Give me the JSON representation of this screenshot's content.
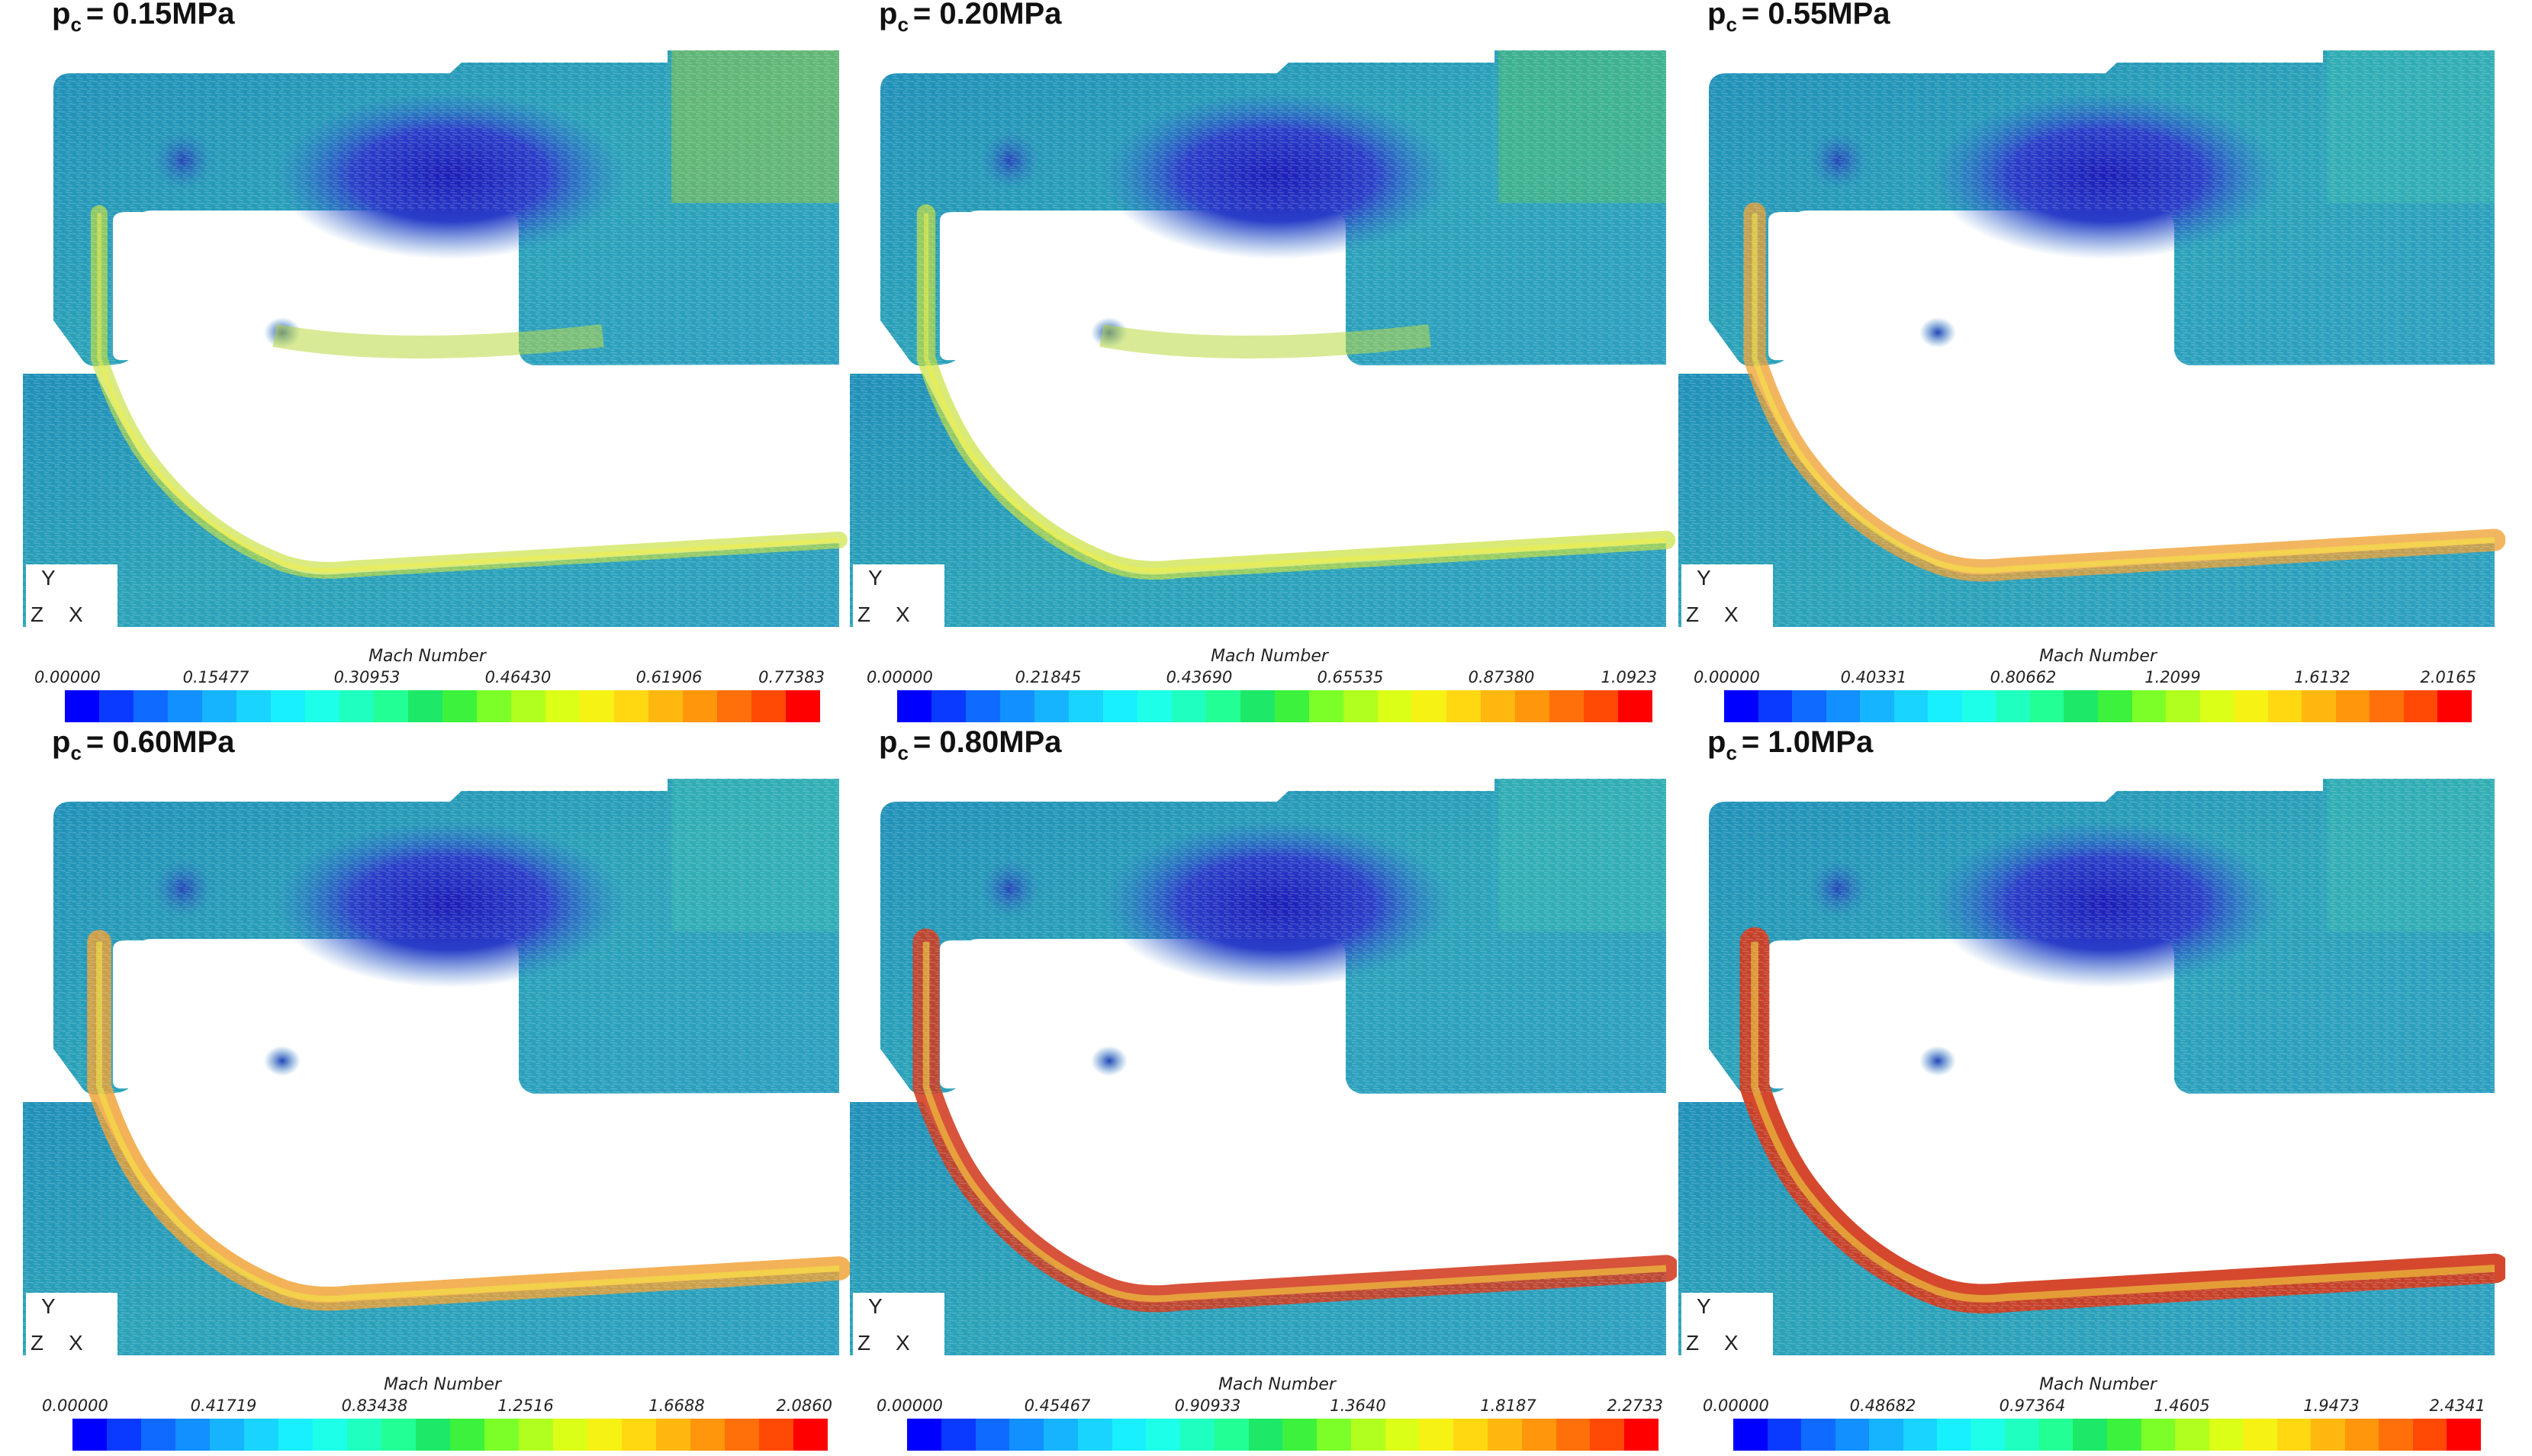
{
  "colorbar_title": "Mach Number",
  "axis_labels": {
    "y": "Y",
    "z": "Z",
    "x": "X"
  },
  "colormap": [
    "#0000ff",
    "#0a3aff",
    "#0f6bff",
    "#1290ff",
    "#16b4ff",
    "#18d4ff",
    "#19f0ff",
    "#1dffe8",
    "#1fffc0",
    "#22ff94",
    "#1ee868",
    "#3cf23c",
    "#7cff28",
    "#b0ff1e",
    "#dcff18",
    "#f6f214",
    "#ffd812",
    "#ffb80f",
    "#ff960c",
    "#ff700a",
    "#ff4a06",
    "#ff0000"
  ],
  "panels": [
    {
      "label_p": "p",
      "label_sub": "c",
      "label_value": "= 0.15MPa",
      "ticks": [
        "0.00000",
        "0.15477",
        "0.30953",
        "0.46430",
        "0.61906",
        "0.77383"
      ],
      "mach_range": [
        0.0,
        0.77383
      ]
    },
    {
      "label_p": "p",
      "label_sub": "c",
      "label_value": "= 0.20MPa",
      "ticks": [
        "0.00000",
        "0.21845",
        "0.43690",
        "0.65535",
        "0.87380",
        "1.0923"
      ],
      "mach_range": [
        0.0,
        1.0923
      ]
    },
    {
      "label_p": "p",
      "label_sub": "c",
      "label_value": "= 0.55MPa",
      "ticks": [
        "0.00000",
        "0.40331",
        "0.80662",
        "1.2099",
        "1.6132",
        "2.0165"
      ],
      "mach_range": [
        0.0,
        2.0165
      ]
    },
    {
      "label_p": "p",
      "label_sub": "c",
      "label_value": "= 0.60MPa",
      "ticks": [
        "0.00000",
        "0.41719",
        "0.83438",
        "1.2516",
        "1.6688",
        "2.0860"
      ],
      "mach_range": [
        0.0,
        2.086
      ]
    },
    {
      "label_p": "p",
      "label_sub": "c",
      "label_value": "= 0.80MPa",
      "ticks": [
        "0.00000",
        "0.45467",
        "0.90933",
        "1.3640",
        "1.8187",
        "2.2733"
      ],
      "mach_range": [
        0.0,
        2.2733
      ]
    },
    {
      "label_p": "p",
      "label_sub": "c",
      "label_value": "= 1.0MPa",
      "ticks": [
        "0.00000",
        "0.48682",
        "0.97364",
        "1.4605",
        "1.9473",
        "2.4341"
      ],
      "mach_range": [
        0.0,
        2.4341
      ]
    }
  ]
}
